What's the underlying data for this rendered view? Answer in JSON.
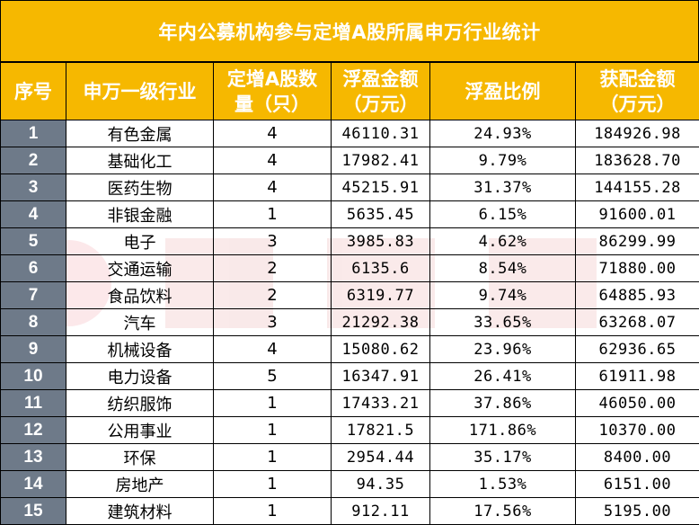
{
  "title": "年内公募机构参与定增A股所属申万行业统计",
  "headers": [
    {
      "line1": "序号",
      "line2": ""
    },
    {
      "line1": "申万一级行业",
      "line2": ""
    },
    {
      "line1": "定增A股数",
      "line2": "量（只）"
    },
    {
      "line1": "浮盈金额",
      "line2": "（万元）"
    },
    {
      "line1": "浮盈比例",
      "line2": ""
    },
    {
      "line1": "获配金额",
      "line2": "（万元）"
    }
  ],
  "rows": [
    {
      "idx": "1",
      "industry": "有色金属",
      "count": "4",
      "gain": "46110.31",
      "ratio": "24.93%",
      "alloc": "184926.98"
    },
    {
      "idx": "2",
      "industry": "基础化工",
      "count": "4",
      "gain": "17982.41",
      "ratio": "9.79%",
      "alloc": "183628.70"
    },
    {
      "idx": "3",
      "industry": "医药生物",
      "count": "4",
      "gain": "45215.91",
      "ratio": "31.37%",
      "alloc": "144155.28"
    },
    {
      "idx": "4",
      "industry": "非银金融",
      "count": "1",
      "gain": "5635.45",
      "ratio": "6.15%",
      "alloc": "91600.01"
    },
    {
      "idx": "5",
      "industry": "电子",
      "count": "3",
      "gain": "3985.83",
      "ratio": "4.62%",
      "alloc": "86299.99"
    },
    {
      "idx": "6",
      "industry": "交通运输",
      "count": "2",
      "gain": "6135.6",
      "ratio": "8.54%",
      "alloc": "71880.00"
    },
    {
      "idx": "7",
      "industry": "食品饮料",
      "count": "2",
      "gain": "6319.77",
      "ratio": "9.74%",
      "alloc": "64885.93"
    },
    {
      "idx": "8",
      "industry": "汽车",
      "count": "3",
      "gain": "21292.38",
      "ratio": "33.65%",
      "alloc": "63268.07"
    },
    {
      "idx": "9",
      "industry": "机械设备",
      "count": "4",
      "gain": "15080.62",
      "ratio": "23.96%",
      "alloc": "62936.65"
    },
    {
      "idx": "10",
      "industry": "电力设备",
      "count": "5",
      "gain": "16347.91",
      "ratio": "26.41%",
      "alloc": "61911.98"
    },
    {
      "idx": "11",
      "industry": "纺织服饰",
      "count": "1",
      "gain": "17433.21",
      "ratio": "37.86%",
      "alloc": "46050.00"
    },
    {
      "idx": "12",
      "industry": "公用事业",
      "count": "1",
      "gain": "17821.5",
      "ratio": "171.86%",
      "alloc": "10370.00"
    },
    {
      "idx": "13",
      "industry": "环保",
      "count": "1",
      "gain": "2954.44",
      "ratio": "35.17%",
      "alloc": "8400.00"
    },
    {
      "idx": "14",
      "industry": "房地产",
      "count": "1",
      "gain": "94.35",
      "ratio": "1.53%",
      "alloc": "6151.00"
    },
    {
      "idx": "15",
      "industry": "建筑材料",
      "count": "1",
      "gain": "912.11",
      "ratio": "17.56%",
      "alloc": "5195.00"
    }
  ]
}
